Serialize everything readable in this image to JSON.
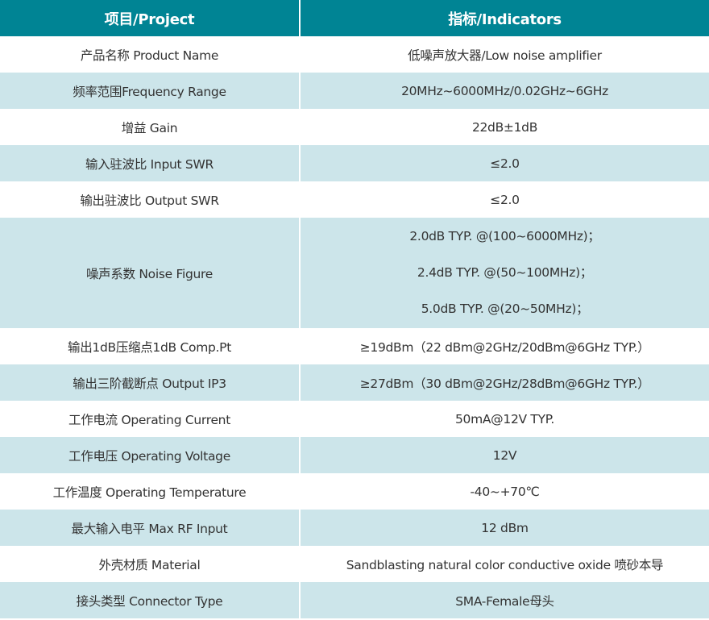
{
  "header": {
    "col1": "项目/Project",
    "col2": "指标/Indicators"
  },
  "rows": [
    {
      "k": "产品名称 Product Name",
      "v": [
        "低噪声放大器/Low noise amplifier"
      ]
    },
    {
      "k": "频率范围Frequency Range",
      "v": [
        "20MHz~6000MHz/0.02GHz~6GHz"
      ]
    },
    {
      "k": "增益 Gain",
      "v": [
        "22dB±1dB"
      ]
    },
    {
      "k": "输入驻波比 Input SWR",
      "v": [
        "≤2.0"
      ]
    },
    {
      "k": "输出驻波比 Output SWR",
      "v": [
        "≤2.0"
      ]
    },
    {
      "k": "噪声系数 Noise Figure",
      "v": [
        "2.0dB TYP. @(100~6000MHz)；",
        "2.4dB TYP. @(50~100MHz)；",
        "5.0dB TYP. @(20~50MHz)；"
      ]
    },
    {
      "k": "输出1dB压缩点1dB Comp.Pt",
      "v": [
        "≥19dBm（22 dBm@2GHz/20dBm@6GHz TYP.）"
      ]
    },
    {
      "k": "输出三阶截断点 Output IP3",
      "v": [
        "≥27dBm（30 dBm@2GHz/28dBm@6GHz TYP.）"
      ]
    },
    {
      "k": "工作电流 Operating Current",
      "v": [
        "50mA@12V TYP."
      ]
    },
    {
      "k": "工作电压 Operating Voltage",
      "v": [
        "12V"
      ]
    },
    {
      "k": "工作温度 Operating Temperature",
      "v": [
        "-40~+70℃"
      ]
    },
    {
      "k": "最大输入电平 Max RF Input",
      "v": [
        "12 dBm"
      ]
    },
    {
      "k": "外壳材质 Material",
      "v": [
        "Sandblasting natural color conductive oxide 喷砂本导"
      ]
    },
    {
      "k": "接头类型 Connector Type",
      "v": [
        "SMA-Female母头"
      ]
    }
  ],
  "colors": {
    "header": "#008494",
    "alt_row": "#cce5ea"
  }
}
